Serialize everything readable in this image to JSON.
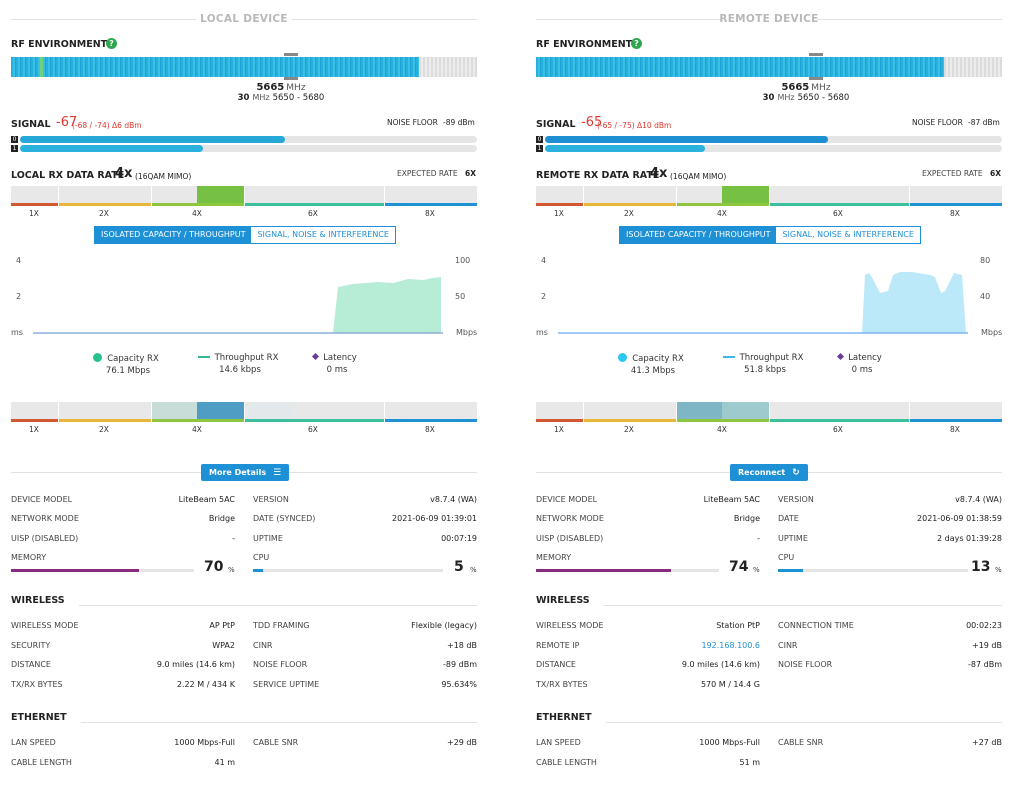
{
  "local": {
    "section_title": "LOCAL DEVICE",
    "rf_label": "RF ENVIRONMENT",
    "freq_value": "5665",
    "freq_unit": "MHz",
    "bw_value": "30",
    "bw_unit": "MHz",
    "bw_range": "5650 - 5680",
    "signal_label": "SIGNAL",
    "signal_value": "-67",
    "signal_detail": "(-68 / -74) Δ6 dBm",
    "noise_label": "NOISE FLOOR",
    "noise_value": "-89 dBm",
    "chain0": "0",
    "chain1": "1",
    "chain0_level": 0.58,
    "chain1_level": 0.4,
    "rx_label": "LOCAL RX DATA RATE",
    "rx_value": "4x",
    "rx_mod": "(16QAM MIMO)",
    "expected_label": "EXPECTED RATE",
    "expected_value": "6X",
    "rates": [
      "1X",
      "2X",
      "4X",
      "6X",
      "8X"
    ],
    "tab_active": "ISOLATED CAPACITY / THROUGHPUT",
    "tab_other": "SIGNAL, NOISE & INTERFERENCE",
    "axis_left": [
      "4",
      "2",
      "ms"
    ],
    "axis_right": [
      "100",
      "50",
      "Mbps"
    ],
    "legend": [
      {
        "name": "Capacity RX",
        "value": "76.1 Mbps",
        "color": "#27c28b"
      },
      {
        "name": "Throughput RX",
        "value": "14.6 kbps",
        "color": "#2fb89a"
      },
      {
        "name": "Latency",
        "value": "0 ms",
        "color": "#6a3d9a"
      }
    ],
    "button": "More Details",
    "rows": [
      [
        "DEVICE MODEL",
        "LiteBeam 5AC",
        "VERSION",
        "v8.7.4 (WA)"
      ],
      [
        "NETWORK MODE",
        "Bridge",
        "DATE (SYNCED)",
        "2021-06-09 01:39:01"
      ],
      [
        "UISP (DISABLED)",
        "-",
        "UPTIME",
        "00:07:19"
      ]
    ],
    "memory_label": "MEMORY",
    "memory_value": "70",
    "cpu_label": "CPU",
    "cpu_value": "5",
    "pct": "%",
    "memory_level": 0.7,
    "cpu_level": 0.05,
    "wireless_title": "WIRELESS",
    "wireless_rows": [
      [
        "WIRELESS MODE",
        "AP PtP",
        "TDD FRAMING",
        "Flexible (legacy)"
      ],
      [
        "SECURITY",
        "WPA2",
        "CINR",
        "+18 dB"
      ],
      [
        "DISTANCE",
        "9.0 miles (14.6 km)",
        "NOISE FLOOR",
        "-89 dBm"
      ],
      [
        "TX/RX BYTES",
        "2.22 M / 434 K",
        "SERVICE UPTIME",
        "95.634%"
      ]
    ],
    "ethernet_title": "ETHERNET",
    "ethernet_rows": [
      [
        "LAN SPEED",
        "1000 Mbps-Full",
        "CABLE SNR",
        "+29 dB"
      ],
      [
        "CABLE LENGTH",
        "41 m",
        "",
        ""
      ]
    ]
  },
  "remote": {
    "section_title": "REMOTE DEVICE",
    "rf_label": "RF ENVIRONMENT",
    "freq_value": "5665",
    "freq_unit": "MHz",
    "bw_value": "30",
    "bw_unit": "MHz",
    "bw_range": "5650 - 5680",
    "signal_label": "SIGNAL",
    "signal_value": "-65",
    "signal_detail": "(-65 / -75) Δ10 dBm",
    "noise_label": "NOISE FLOOR",
    "noise_value": "-87 dBm",
    "chain0": "0",
    "chain1": "1",
    "chain0_level": 0.62,
    "chain1_level": 0.35,
    "rx_label": "REMOTE RX DATA RATE",
    "rx_value": "4x",
    "rx_mod": "(16QAM MIMO)",
    "expected_label": "EXPECTED RATE",
    "expected_value": "6X",
    "rates": [
      "1X",
      "2X",
      "4X",
      "6X",
      "8X"
    ],
    "tab_active": "ISOLATED CAPACITY / THROUGHPUT",
    "tab_other": "SIGNAL, NOISE & INTERFERENCE",
    "axis_left": [
      "4",
      "2",
      "ms"
    ],
    "axis_right": [
      "80",
      "40",
      "Mbps"
    ],
    "legend": [
      {
        "name": "Capacity RX",
        "value": "41.3 Mbps",
        "color": "#2bc6f2"
      },
      {
        "name": "Throughput RX",
        "value": "51.8 kbps",
        "color": "#3fb8e8"
      },
      {
        "name": "Latency",
        "value": "0 ms",
        "color": "#6a3d9a"
      }
    ],
    "button": "Reconnect",
    "rows": [
      [
        "DEVICE MODEL",
        "LiteBeam 5AC",
        "VERSION",
        "v8.7.4 (WA)"
      ],
      [
        "NETWORK MODE",
        "Bridge",
        "DATE",
        "2021-06-09 01:38:59"
      ],
      [
        "UISP (DISABLED)",
        "-",
        "UPTIME",
        "2 days 01:39:28"
      ]
    ],
    "memory_label": "MEMORY",
    "memory_value": "74",
    "cpu_label": "CPU",
    "cpu_value": "13",
    "pct": "%",
    "memory_level": 0.74,
    "cpu_level": 0.13,
    "wireless_title": "WIRELESS",
    "wireless_rows": [
      [
        "WIRELESS MODE",
        "Station PtP",
        "CONNECTION TIME",
        "00:02:23"
      ],
      [
        "REMOTE IP",
        "192.168.100.6",
        "CINR",
        "+19 dB"
      ],
      [
        "DISTANCE",
        "9.0 miles (14.6 km)",
        "NOISE FLOOR",
        "-87 dBm"
      ],
      [
        "TX/RX BYTES",
        "570 M / 14.4 G",
        "",
        ""
      ]
    ],
    "ethernet_title": "ETHERNET",
    "ethernet_rows": [
      [
        "LAN SPEED",
        "1000 Mbps-Full",
        "CABLE SNR",
        "+27 dB"
      ],
      [
        "CABLE LENGTH",
        "51 m",
        "",
        ""
      ]
    ]
  }
}
